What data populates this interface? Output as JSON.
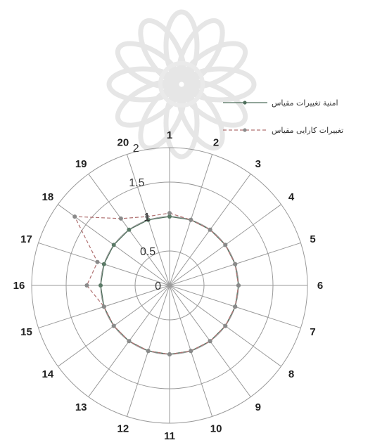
{
  "chart_data": {
    "type": "radar",
    "categories": [
      "1",
      "2",
      "3",
      "4",
      "5",
      "6",
      "7",
      "8",
      "9",
      "10",
      "11",
      "12",
      "13",
      "14",
      "15",
      "16",
      "17",
      "18",
      "19",
      "20"
    ],
    "radial_ticks": [
      "0",
      "0.5",
      "1",
      "1.5",
      "2"
    ],
    "rlim": [
      0,
      2
    ],
    "grid": true,
    "legend_position": "top-right",
    "series": [
      {
        "name": "امنیة تغییرات مقیاس",
        "color": "#4f6f5c",
        "style": "solid",
        "marker": "circle",
        "values": [
          1.0,
          1.0,
          1.0,
          1.0,
          1.0,
          1.0,
          1.0,
          1.0,
          1.0,
          1.0,
          1.0,
          1.0,
          1.0,
          1.0,
          1.0,
          1.0,
          1.0,
          1.0,
          1.0,
          1.0
        ]
      },
      {
        "name": "تغییرات کارایی مقیاس",
        "color": "#b07070",
        "style": "dashed",
        "marker": "circle",
        "values": [
          1.05,
          1.0,
          1.0,
          1.0,
          1.0,
          1.0,
          1.0,
          1.0,
          1.0,
          1.0,
          1.0,
          1.0,
          1.0,
          1.0,
          1.0,
          1.2,
          1.1,
          1.7,
          1.2,
          1.05
        ]
      }
    ]
  }
}
